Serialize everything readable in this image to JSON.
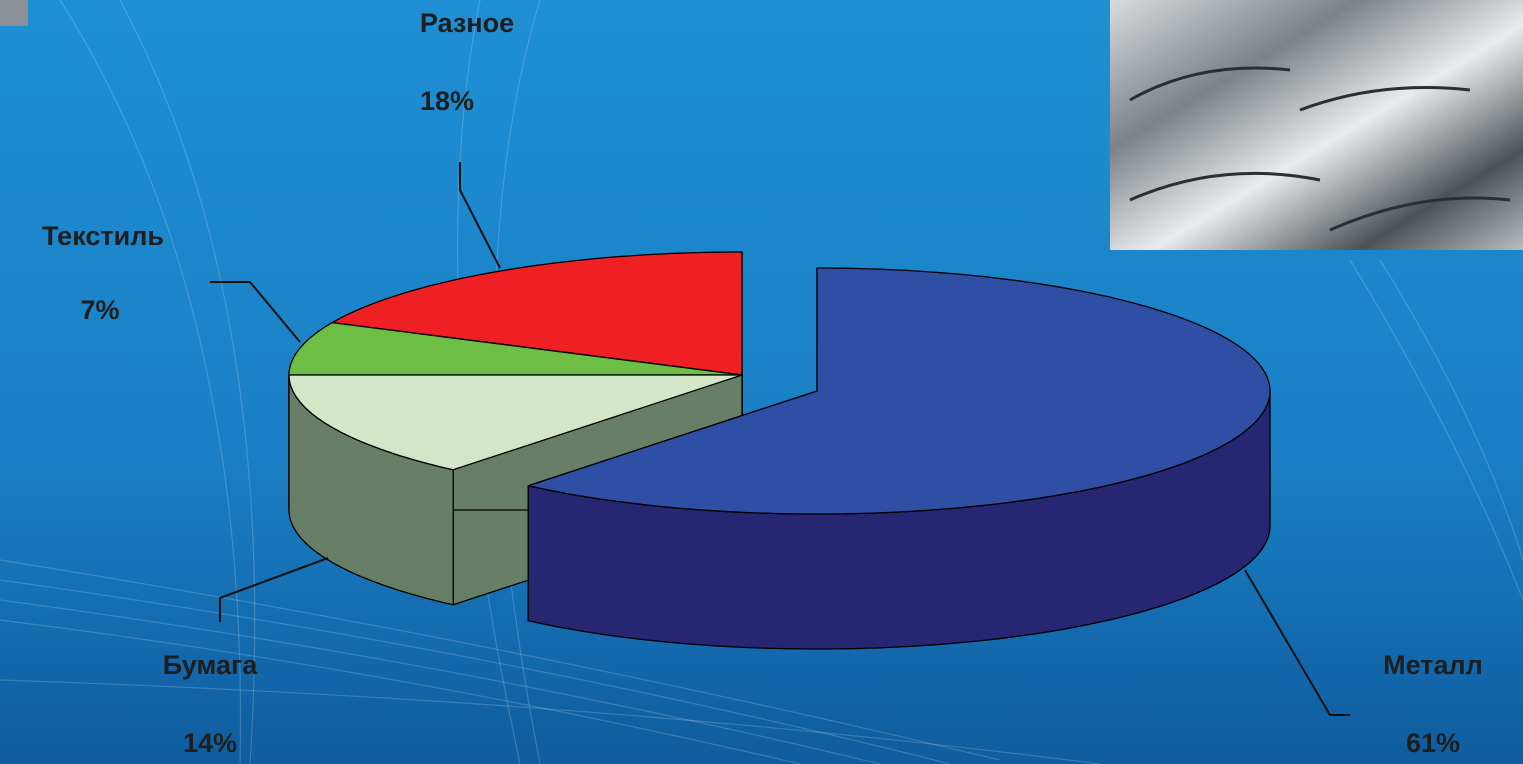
{
  "chart_data": {
    "type": "pie",
    "categories": [
      "Металл",
      "Бумага",
      "Текстиль",
      "Разное"
    ],
    "values": [
      61,
      14,
      7,
      18
    ],
    "value_labels": [
      "61%",
      "14%",
      "7%",
      "18%"
    ],
    "colors": [
      "#2e4fa3",
      "#d3e6c8",
      "#6cbf44",
      "#ee2024"
    ],
    "side_colors": [
      "#262673",
      "#667f66",
      "#4e8c30",
      "#a01518"
    ]
  }
}
